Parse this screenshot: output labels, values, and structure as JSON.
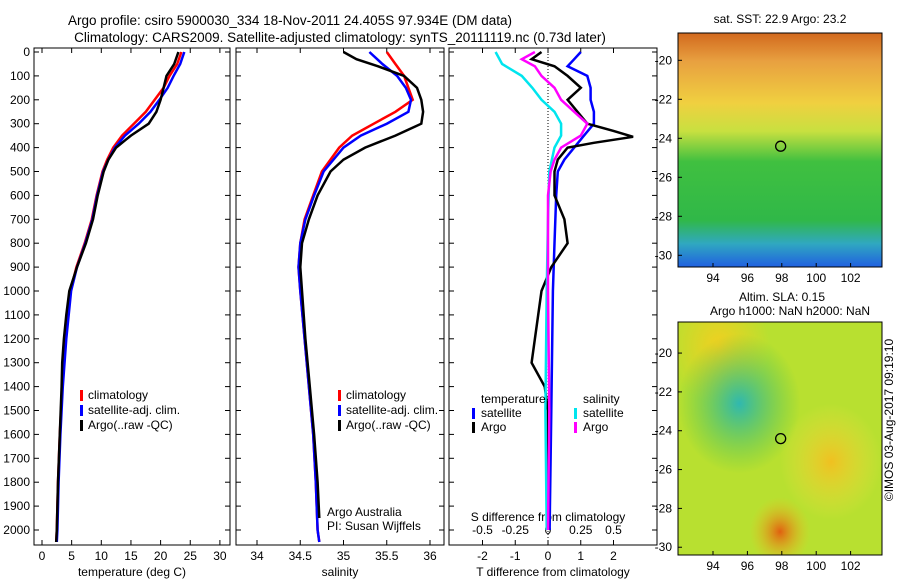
{
  "title_line1": "Argo profile: csiro 5900030_334 18-Nov-2011 24.405S 97.934E (DM data)",
  "title_line2": "Climatology: CARS2009. Satellite-adjusted climatology: synTS_20111119.nc (0.73d later)",
  "footer_stamp": "©IMOS 03-Aug-2017 09:19:10",
  "colors": {
    "climatology": "#ff0000",
    "satellite": "#0000ff",
    "argo": "#000000",
    "sal_satellite": "#00e5ee",
    "sal_argo": "#ff00ff"
  },
  "chart_data": [
    {
      "type": "line",
      "name": "temperature-profile",
      "xlabel": "temperature (deg C)",
      "ylabel": "",
      "xlim": [
        -2,
        31
      ],
      "ylim": [
        2050,
        0
      ],
      "xticks": [
        0,
        5,
        10,
        15,
        20,
        25,
        30
      ],
      "yticks": [
        0,
        100,
        200,
        300,
        400,
        500,
        600,
        700,
        800,
        900,
        1000,
        1100,
        1200,
        1300,
        1400,
        1500,
        1600,
        1700,
        1800,
        1900,
        2000
      ],
      "legend": [
        "climatology",
        "satellite-adj. clim.",
        "Argo(..raw -QC)"
      ],
      "series": [
        {
          "name": "climatology",
          "color": "#ff0000",
          "depth": [
            0,
            50,
            100,
            150,
            200,
            250,
            300,
            350,
            400,
            450,
            500,
            600,
            700,
            800,
            900,
            1000,
            1200,
            1400,
            1600,
            1800,
            2000,
            2050
          ],
          "values": [
            23.5,
            22.8,
            21.5,
            20.5,
            19,
            17.5,
            15.5,
            13.5,
            12,
            11,
            10.2,
            9.2,
            8.4,
            7.2,
            5.8,
            4.8,
            4,
            3.4,
            3,
            2.7,
            2.5,
            2.4
          ]
        },
        {
          "name": "satellite-adj. clim.",
          "color": "#0000ff",
          "depth": [
            0,
            50,
            100,
            150,
            200,
            250,
            300,
            350,
            400,
            450,
            500,
            600,
            700,
            800,
            900,
            1000,
            1200,
            1400,
            1600,
            1800,
            2000,
            2050
          ],
          "values": [
            24,
            23.3,
            22.2,
            21.2,
            19.8,
            18.3,
            16.3,
            14,
            12.3,
            11.2,
            10.3,
            9.3,
            8.5,
            7.3,
            5.9,
            4.9,
            4.1,
            3.5,
            3.1,
            2.8,
            2.6,
            2.5
          ]
        },
        {
          "name": "Argo(..raw -QC)",
          "color": "#000000",
          "depth": [
            0,
            50,
            100,
            150,
            200,
            250,
            300,
            350,
            400,
            450,
            500,
            600,
            700,
            800,
            900,
            1000,
            1100,
            1200,
            1300,
            1400,
            1600,
            1800,
            2000,
            2050
          ],
          "values": [
            23,
            22.3,
            21,
            20.5,
            20,
            19.3,
            18,
            15,
            12.5,
            11.2,
            10.4,
            9.4,
            8.6,
            7.4,
            5.9,
            4.6,
            4.1,
            3.7,
            3.4,
            3.3,
            3,
            2.7,
            2.5,
            2.4
          ]
        }
      ]
    },
    {
      "type": "line",
      "name": "salinity-profile",
      "xlabel": "salinity",
      "xlim": [
        33.75,
        36.2
      ],
      "ylim": [
        2050,
        0
      ],
      "xticks": [
        34,
        34.5,
        35,
        35.5,
        36
      ],
      "legend": [
        "climatology",
        "satellite-adj. clim.",
        "Argo(..raw -QC)"
      ],
      "annotation": [
        "Argo Australia",
        "PI: Susan Wijffels"
      ],
      "series": [
        {
          "name": "climatology",
          "color": "#ff0000",
          "depth": [
            0,
            50,
            100,
            150,
            200,
            250,
            300,
            350,
            400,
            500,
            600,
            700,
            800,
            900,
            1000,
            1200,
            1400,
            1600,
            1800,
            2000,
            2050
          ],
          "values": [
            35.5,
            35.6,
            35.7,
            35.75,
            35.8,
            35.6,
            35.35,
            35.1,
            34.95,
            34.75,
            34.65,
            34.55,
            34.5,
            34.48,
            34.5,
            34.55,
            34.6,
            34.65,
            34.68,
            34.7,
            34.72
          ]
        },
        {
          "name": "satellite-adj. clim.",
          "color": "#0000ff",
          "depth": [
            0,
            50,
            100,
            150,
            200,
            250,
            300,
            350,
            400,
            500,
            600,
            700,
            800,
            900,
            1000,
            1200,
            1400,
            1600,
            1800,
            2000,
            2050
          ],
          "values": [
            35.3,
            35.45,
            35.62,
            35.72,
            35.78,
            35.75,
            35.5,
            35.2,
            35.0,
            34.77,
            34.66,
            34.56,
            34.5,
            34.48,
            34.5,
            34.55,
            34.6,
            34.65,
            34.68,
            34.7,
            34.72
          ]
        },
        {
          "name": "Argo(..raw -QC)",
          "color": "#000000",
          "depth": [
            0,
            30,
            60,
            100,
            150,
            200,
            250,
            300,
            350,
            400,
            450,
            500,
            600,
            700,
            800,
            900,
            1000,
            1200,
            1400,
            1600,
            1800,
            1950
          ],
          "values": [
            35.0,
            35.15,
            35.4,
            35.7,
            35.85,
            35.9,
            35.92,
            35.9,
            35.6,
            35.25,
            35.0,
            34.85,
            34.7,
            34.6,
            34.52,
            34.5,
            34.52,
            34.56,
            34.61,
            34.66,
            34.7,
            34.72
          ]
        }
      ]
    },
    {
      "type": "line",
      "name": "difference-profile",
      "xlabel": "T difference from climatology",
      "x2label": "S difference from climatology",
      "xlim": [
        -2.8,
        3.3
      ],
      "ylim": [
        2050,
        0
      ],
      "xticks": [
        -2,
        -1,
        0,
        1,
        2
      ],
      "x2ticks": [
        -0.5,
        -0.25,
        0,
        0.25,
        0.5
      ],
      "legend_titles": [
        "temperature",
        "salinity"
      ],
      "legend": [
        "satellite",
        "Argo",
        "satellite",
        "Argo"
      ],
      "series": [
        {
          "name": "T satellite",
          "color": "#0000ff",
          "units": "T",
          "depth": [
            0,
            30,
            60,
            100,
            150,
            200,
            250,
            300,
            350,
            400,
            450,
            500,
            600,
            800,
            1000,
            1500,
            2000
          ],
          "values": [
            1.0,
            0.8,
            0.6,
            1.2,
            1.3,
            1.3,
            1.4,
            1.4,
            1.1,
            0.8,
            0.5,
            0.3,
            0.25,
            0.2,
            0.15,
            0.1,
            0.05
          ]
        },
        {
          "name": "T Argo",
          "color": "#000000",
          "units": "T",
          "depth": [
            0,
            30,
            60,
            100,
            150,
            200,
            250,
            300,
            330,
            355,
            380,
            400,
            450,
            500,
            600,
            700,
            800,
            900,
            1000,
            1100,
            1200,
            1300,
            1400,
            1500,
            1700,
            2000
          ],
          "values": [
            -0.2,
            -0.5,
            0.2,
            0.6,
            1.0,
            0.6,
            0.9,
            1.2,
            2.0,
            2.6,
            1.4,
            0.6,
            0.3,
            0.2,
            0.2,
            0.5,
            0.6,
            0.1,
            -0.2,
            -0.3,
            -0.4,
            -0.5,
            -0.1,
            0,
            0,
            0
          ]
        },
        {
          "name": "S satellite",
          "color": "#00e5ee",
          "units": "S",
          "depth": [
            0,
            50,
            100,
            150,
            200,
            250,
            300,
            350,
            400,
            500,
            700,
            1000,
            1500,
            2000
          ],
          "values": [
            -0.4,
            -0.35,
            -0.2,
            -0.12,
            -0.05,
            0.05,
            0.1,
            0.1,
            0.05,
            0.01,
            0,
            -0.01,
            -0.02,
            -0.01
          ]
        },
        {
          "name": "S Argo",
          "color": "#ff00ff",
          "units": "S",
          "depth": [
            0,
            30,
            60,
            100,
            150,
            200,
            250,
            300,
            350,
            400,
            450,
            500,
            600,
            800,
            1000,
            1500,
            2000
          ],
          "values": [
            -0.1,
            -0.2,
            -0.1,
            -0.05,
            0.05,
            0.1,
            0.2,
            0.3,
            0.25,
            0.1,
            0.05,
            0.02,
            0,
            0,
            0,
            0.01,
            0
          ]
        }
      ]
    },
    {
      "type": "heatmap",
      "name": "sst-map",
      "title": "sat. SST: 22.9 Argo: 23.2",
      "xticks": [
        94,
        96,
        98,
        100,
        102
      ],
      "yticks": [
        -20,
        -22,
        -24,
        -26,
        -28,
        -30
      ],
      "marker": {
        "lon": 97.934,
        "lat": -24.405
      }
    },
    {
      "type": "heatmap",
      "name": "sla-map",
      "title_line1": "Altim. SLA: 0.15",
      "title_line2": "Argo h1000: NaN h2000: NaN",
      "xticks": [
        94,
        96,
        98,
        100,
        102
      ],
      "yticks": [
        -20,
        -22,
        -24,
        -26,
        -28,
        -30
      ],
      "marker": {
        "lon": 97.934,
        "lat": -24.405
      }
    }
  ]
}
